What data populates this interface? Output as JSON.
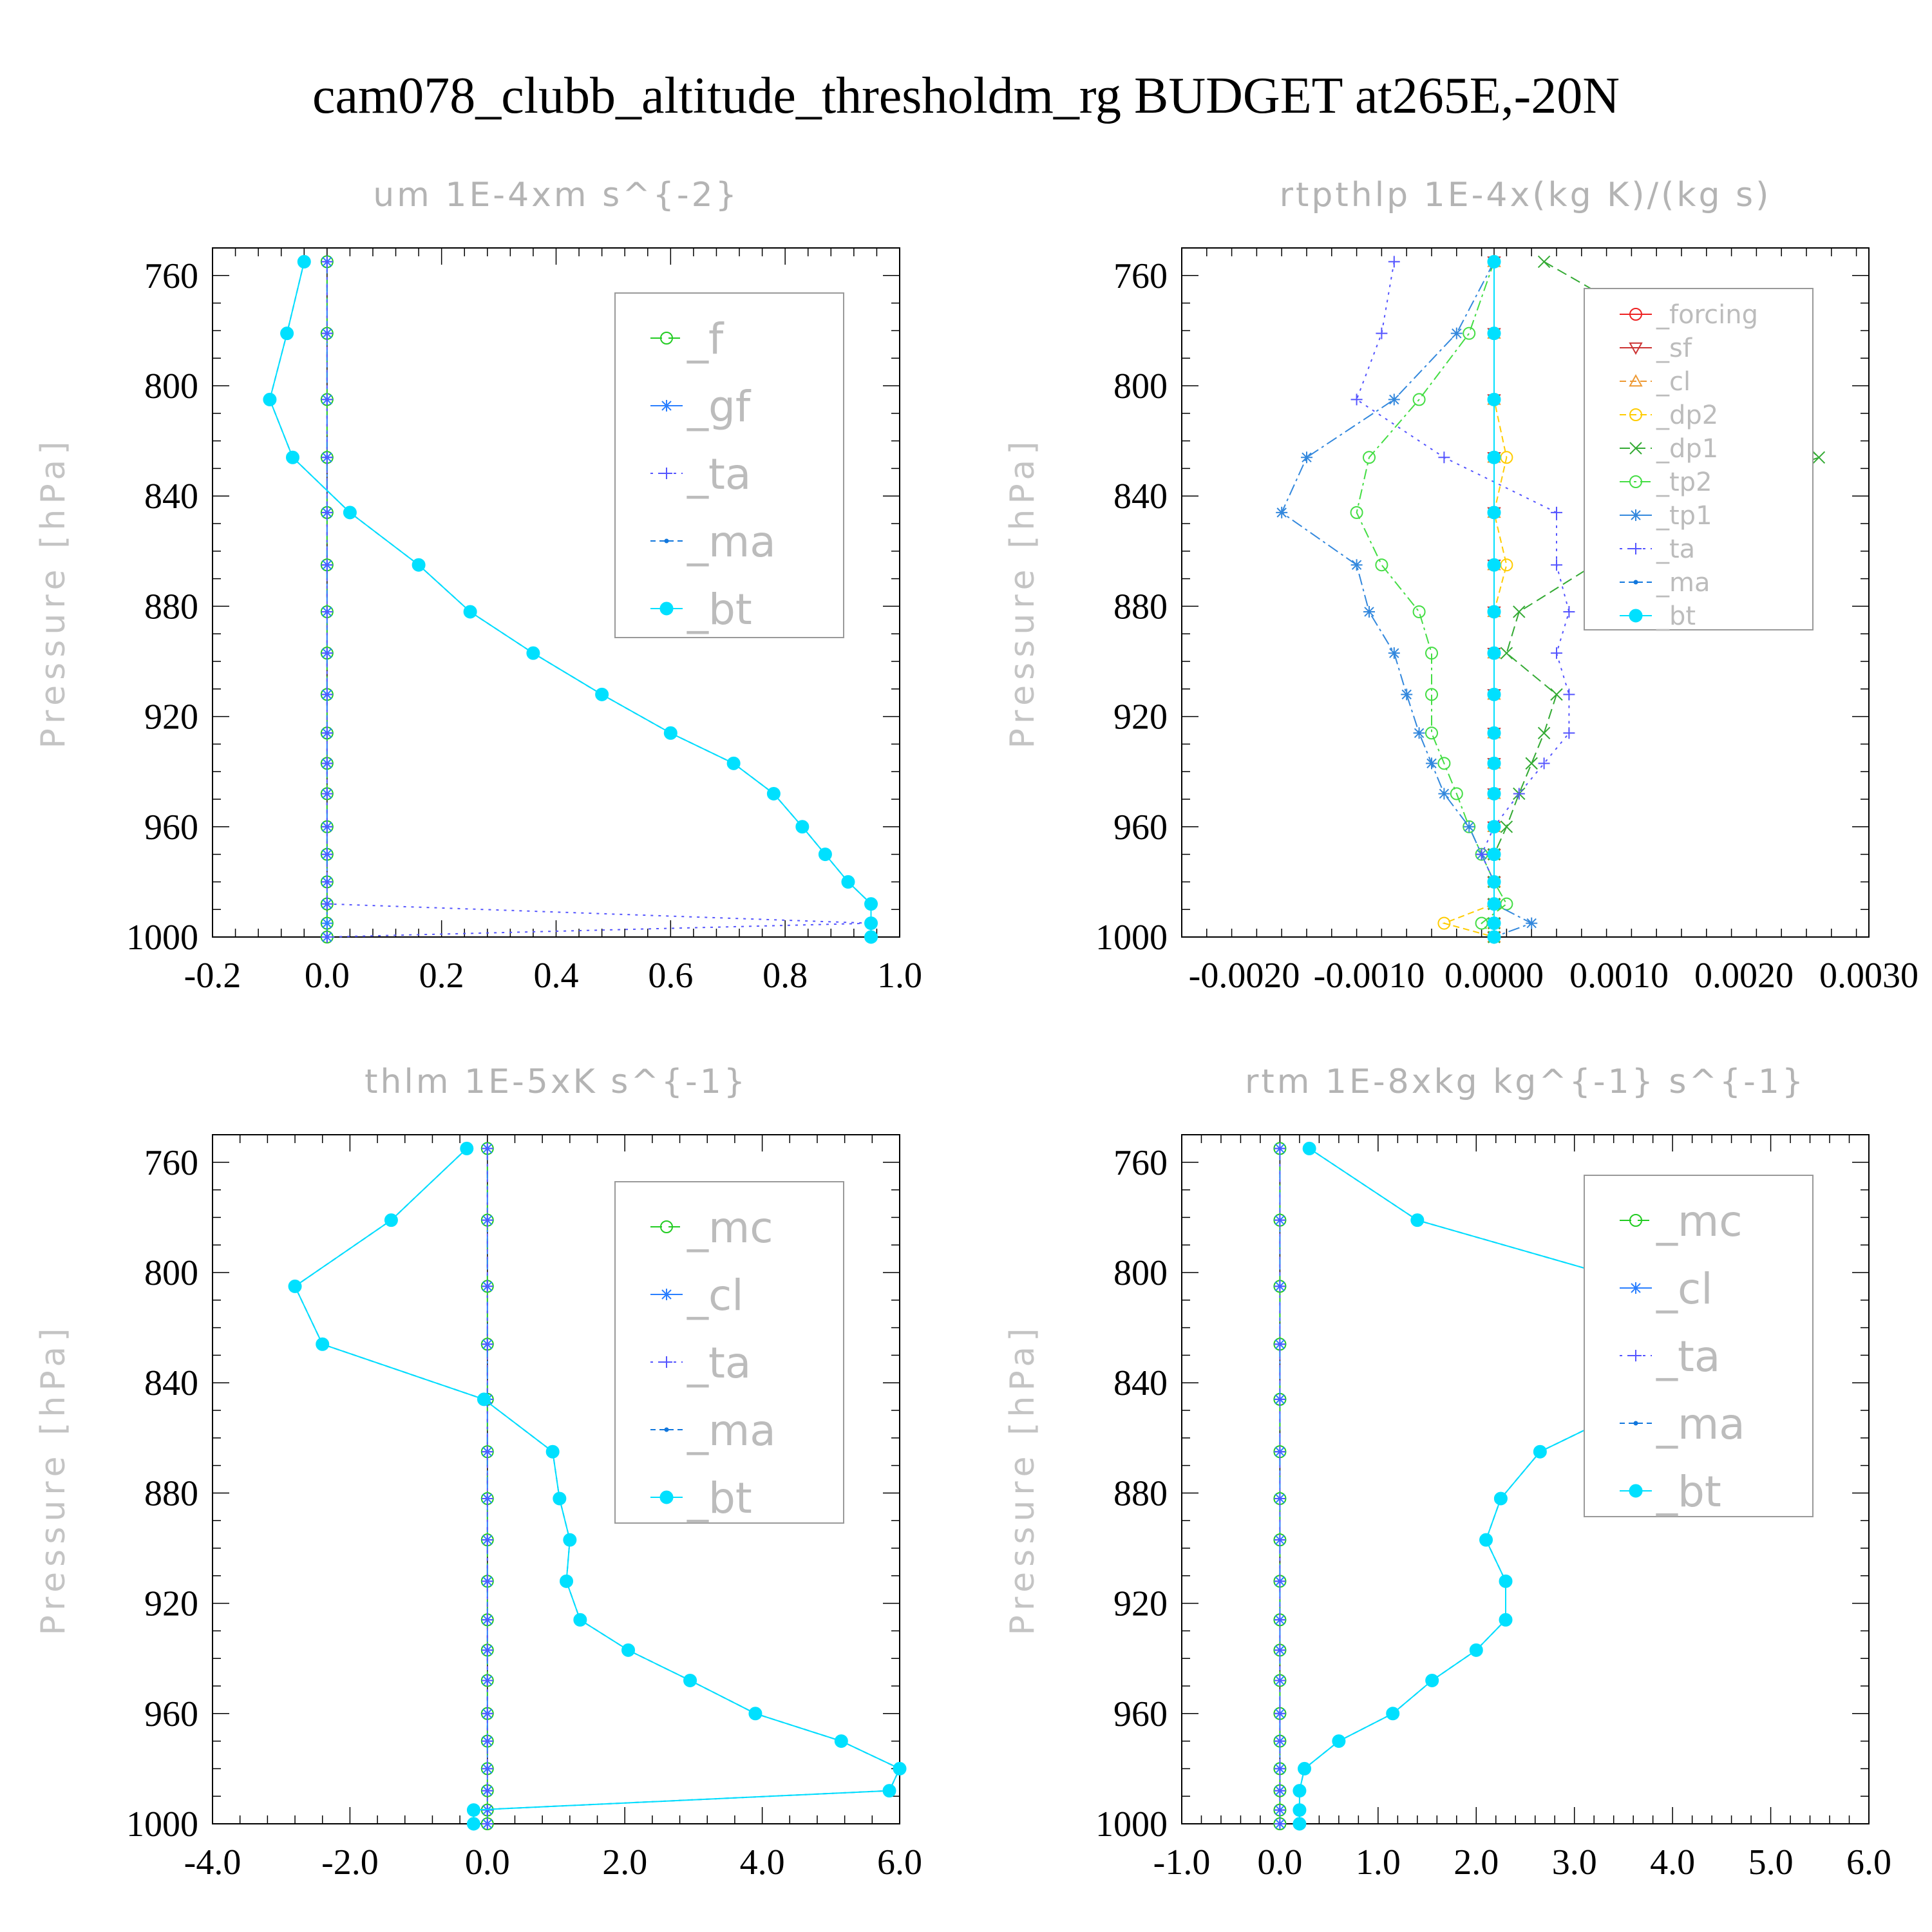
{
  "title": "cam078_clubb_altitude_thresholdm_rg  BUDGET at265E,-20N",
  "y_label": "Pressure [hPa]",
  "colors": {
    "_f": "#22cc22",
    "_mc": "#22cc22",
    "_gf": "#2a7fff",
    "_cl": "#2a7fff",
    "_ta": "#5555ff",
    "_ma": "#1177dd",
    "_bt": "#00e0ff",
    "_forcing": "#ee2222",
    "_sf": "#cc3333",
    "_cl_rtp": "#ee9933",
    "_dp2": "#ffcc00",
    "_dp1": "#33aa33",
    "_tp2": "#44dd44",
    "_tp1": "#3388dd",
    "zero_line": "#000000",
    "axis": "#000000"
  },
  "chart_data": [
    {
      "type": "line",
      "title": "um  1E-4xm s^{-2}",
      "ylabel": "Pressure [hPa]",
      "ylim": [
        1000,
        750
      ],
      "yticks": [
        760,
        800,
        840,
        880,
        920,
        960,
        1000
      ],
      "xlim": [
        -0.2,
        1.0
      ],
      "xticks": [
        "-0.2",
        "0.0",
        "0.2",
        "0.4",
        "0.6",
        "0.8",
        "1.0"
      ],
      "p": [
        755,
        781,
        805,
        826,
        846,
        865,
        882,
        897,
        912,
        926,
        937,
        948,
        960,
        970,
        980,
        988,
        995,
        1000
      ],
      "legend_style": "big",
      "series": [
        {
          "name": "_f",
          "key": "_f",
          "marker": "circle",
          "dash": "18 10",
          "values": [
            0,
            0,
            0,
            0,
            0,
            0,
            0,
            0,
            0,
            0,
            0,
            0,
            0,
            0,
            0,
            0,
            0,
            0
          ]
        },
        {
          "name": "_gf",
          "key": "_gf",
          "marker": "star",
          "dash": "18 6 4 6",
          "values": [
            0,
            0,
            0,
            0,
            0,
            0,
            0,
            0,
            0,
            0,
            0,
            0,
            0,
            0,
            0,
            0,
            0,
            0
          ]
        },
        {
          "name": "_ta",
          "key": "_ta",
          "marker": "plus",
          "dash": "4 8",
          "values": [
            0,
            0,
            0,
            0,
            0,
            0,
            0,
            0,
            0,
            0,
            0,
            0,
            0,
            0,
            0,
            0,
            0.95,
            0
          ]
        },
        {
          "name": "_ma",
          "key": "_ma",
          "marker": "dot",
          "dash": "8 6",
          "values": [
            -0.04,
            -0.07,
            -0.1,
            -0.06,
            0.04,
            0.16,
            0.25,
            0.36,
            0.48,
            0.6,
            0.71,
            0.78,
            0.83,
            0.87,
            0.91,
            0.95,
            0.95,
            0.95
          ]
        },
        {
          "name": "_bt",
          "key": "_bt",
          "marker": "filled",
          "dash": "",
          "values": [
            -0.04,
            -0.07,
            -0.1,
            -0.06,
            0.04,
            0.16,
            0.25,
            0.36,
            0.48,
            0.6,
            0.71,
            0.78,
            0.83,
            0.87,
            0.91,
            0.95,
            0.95,
            0.95
          ]
        }
      ]
    },
    {
      "type": "line",
      "title": "rtpthlp  1E-4x(kg K)/(kg s)",
      "ylabel": "Pressure [hPa]",
      "ylim": [
        1000,
        750
      ],
      "yticks": [
        760,
        800,
        840,
        880,
        920,
        960,
        1000
      ],
      "xlim": [
        -0.0025,
        0.003
      ],
      "xticks": [
        "-0.0020",
        "-0.0010",
        "0.0000",
        "0.0010",
        "0.0020",
        "0.0030"
      ],
      "p": [
        755,
        781,
        805,
        826,
        846,
        865,
        882,
        897,
        912,
        926,
        937,
        948,
        960,
        970,
        980,
        988,
        995,
        1000
      ],
      "legend_style": "small",
      "series": [
        {
          "name": "_forcing",
          "key": "_forcing",
          "marker": "circle",
          "dash": "",
          "values": [
            0,
            0,
            0,
            0,
            0,
            0,
            0,
            0,
            0,
            0,
            0,
            0,
            0,
            0,
            0,
            0,
            0,
            0
          ]
        },
        {
          "name": "_sf",
          "key": "_sf",
          "marker": "tri-down",
          "dash": "",
          "values": [
            0,
            0,
            0,
            0,
            0,
            0,
            0,
            0,
            0,
            0,
            0,
            0,
            0,
            0,
            0,
            0,
            0,
            0
          ]
        },
        {
          "name": "_cl",
          "key": "_cl_rtp",
          "marker": "tri-up",
          "dash": "10 6",
          "values": [
            0,
            0,
            0,
            0,
            0,
            0,
            0,
            0,
            0,
            0,
            0,
            0,
            0,
            0,
            0,
            0,
            0,
            0
          ]
        },
        {
          "name": "_dp2",
          "key": "_dp2",
          "marker": "circle",
          "dash": "10 6",
          "values": [
            0,
            0,
            0,
            0.0001,
            0,
            0.0001,
            0,
            0,
            0,
            0,
            0,
            0,
            0,
            0,
            0,
            0,
            -0.0004,
            0
          ]
        },
        {
          "name": "_dp1",
          "key": "_dp1",
          "marker": "x",
          "dash": "16 8",
          "values": [
            0.0004,
            0.0014,
            0.0021,
            0.0026,
            0.0013,
            0.0008,
            0.0002,
            0.0001,
            0.0005,
            0.0004,
            0.0003,
            0.0002,
            0.0001,
            0,
            0,
            0,
            0,
            0
          ]
        },
        {
          "name": "_tp2",
          "key": "_tp2",
          "marker": "circle",
          "dash": "16 6 4 6",
          "values": [
            0,
            -0.0002,
            -0.0006,
            -0.001,
            -0.0011,
            -0.0009,
            -0.0006,
            -0.0005,
            -0.0005,
            -0.0005,
            -0.0004,
            -0.0003,
            -0.0002,
            -0.0001,
            0,
            0.0001,
            -0.0001,
            0
          ]
        },
        {
          "name": "_tp1",
          "key": "_tp1",
          "marker": "star",
          "dash": "18 6 4 6",
          "values": [
            0,
            -0.0003,
            -0.0008,
            -0.0015,
            -0.0017,
            -0.0011,
            -0.001,
            -0.0008,
            -0.0007,
            -0.0006,
            -0.0005,
            -0.0004,
            -0.0002,
            -0.0001,
            0,
            0,
            0.0003,
            0
          ]
        },
        {
          "name": "_ta",
          "key": "_ta",
          "marker": "plus",
          "dash": "4 8",
          "values": [
            -0.0008,
            -0.0009,
            -0.0011,
            -0.0004,
            0.0005,
            0.0005,
            0.0006,
            0.0005,
            0.0006,
            0.0006,
            0.0004,
            0.0002,
            0,
            -0.0001,
            0,
            0,
            0,
            0
          ]
        },
        {
          "name": "_ma",
          "key": "_ma",
          "marker": "dot",
          "dash": "8 6",
          "values": [
            0,
            0,
            0,
            0,
            0,
            0,
            0,
            0,
            0,
            0,
            0,
            0,
            0,
            0,
            0,
            0,
            0,
            0
          ]
        },
        {
          "name": "_bt",
          "key": "_bt",
          "marker": "filled",
          "dash": "",
          "values": [
            0,
            0,
            0,
            0,
            0,
            0,
            0,
            0,
            0,
            0,
            0,
            0,
            0,
            0,
            0,
            0,
            0,
            0
          ]
        }
      ]
    },
    {
      "type": "line",
      "title": "thlm  1E-5xK s^{-1}",
      "ylabel": "Pressure [hPa]",
      "ylim": [
        1000,
        750
      ],
      "yticks": [
        760,
        800,
        840,
        880,
        920,
        960,
        1000
      ],
      "xlim": [
        -4.0,
        6.0
      ],
      "xticks": [
        "-4.0",
        "-2.0",
        "0.0",
        "2.0",
        "4.0",
        "6.0"
      ],
      "p": [
        755,
        781,
        805,
        826,
        846,
        865,
        882,
        897,
        912,
        926,
        937,
        948,
        960,
        970,
        980,
        988,
        995,
        1000
      ],
      "legend_style": "big",
      "series": [
        {
          "name": "_mc",
          "key": "_mc",
          "marker": "circle",
          "dash": "18 10",
          "values": [
            0,
            0,
            0,
            0,
            0,
            0,
            0,
            0,
            0,
            0,
            0,
            0,
            0,
            0,
            0,
            0,
            0,
            0
          ]
        },
        {
          "name": "_cl",
          "key": "_cl",
          "marker": "star",
          "dash": "18 6 4 6",
          "values": [
            0,
            0,
            0,
            0,
            0,
            0,
            0,
            0,
            0,
            0,
            0,
            0,
            0,
            0,
            0,
            0,
            0,
            0
          ]
        },
        {
          "name": "_ta",
          "key": "_ta",
          "marker": "plus",
          "dash": "4 8",
          "values": [
            0,
            0,
            0,
            0,
            0,
            0,
            0,
            0,
            0,
            0,
            0,
            0,
            0,
            0,
            0,
            0,
            0,
            0
          ]
        },
        {
          "name": "_ma",
          "key": "_ma",
          "marker": "dot",
          "dash": "8 6",
          "values": [
            -0.3,
            -1.4,
            -2.8,
            -2.4,
            -0.05,
            0.95,
            1.05,
            1.2,
            1.15,
            1.35,
            2.05,
            2.95,
            3.9,
            5.15,
            6.0,
            5.85,
            -0.2,
            -0.2
          ]
        },
        {
          "name": "_bt",
          "key": "_bt",
          "marker": "filled",
          "dash": "",
          "values": [
            -0.3,
            -1.4,
            -2.8,
            -2.4,
            -0.05,
            0.95,
            1.05,
            1.2,
            1.15,
            1.35,
            2.05,
            2.95,
            3.9,
            5.15,
            6.0,
            5.85,
            -0.2,
            -0.2
          ]
        }
      ]
    },
    {
      "type": "line",
      "title": "rtm  1E-8xkg kg^{-1} s^{-1}",
      "ylabel": "Pressure [hPa]",
      "ylim": [
        1000,
        750
      ],
      "yticks": [
        760,
        800,
        840,
        880,
        920,
        960,
        1000
      ],
      "xlim": [
        -1.0,
        6.0
      ],
      "xticks": [
        "-1.0",
        "0.0",
        "1.0",
        "2.0",
        "3.0",
        "4.0",
        "5.0",
        "6.0"
      ],
      "p": [
        755,
        781,
        805,
        826,
        846,
        865,
        882,
        897,
        912,
        926,
        937,
        948,
        960,
        970,
        980,
        988,
        995,
        1000
      ],
      "legend_style": "big",
      "series": [
        {
          "name": "_mc",
          "key": "_mc",
          "marker": "circle",
          "dash": "18 10",
          "values": [
            0,
            0,
            0,
            0,
            0,
            0,
            0,
            0,
            0,
            0,
            0,
            0,
            0,
            0,
            0,
            0,
            0,
            0
          ]
        },
        {
          "name": "_cl",
          "key": "_cl",
          "marker": "star",
          "dash": "18 6 4 6",
          "values": [
            0,
            0,
            0,
            0,
            0,
            0,
            0,
            0,
            0,
            0,
            0,
            0,
            0,
            0,
            0,
            0,
            0,
            0
          ]
        },
        {
          "name": "_ta",
          "key": "_ta",
          "marker": "plus",
          "dash": "4 8",
          "values": [
            0,
            0,
            0,
            0,
            0,
            0,
            0,
            0,
            0,
            0,
            0,
            0,
            0,
            0,
            0,
            0,
            0,
            0
          ]
        },
        {
          "name": "_ma",
          "key": "_ma",
          "marker": "dot",
          "dash": "8 6",
          "values": [
            0.3,
            1.4,
            3.75,
            5.2,
            3.75,
            2.65,
            2.25,
            2.1,
            2.3,
            2.3,
            2.0,
            1.55,
            1.15,
            0.6,
            0.25,
            0.2,
            0.2,
            0.2
          ]
        },
        {
          "name": "_bt",
          "key": "_bt",
          "marker": "filled",
          "dash": "",
          "values": [
            0.3,
            1.4,
            3.75,
            5.2,
            3.75,
            2.65,
            2.25,
            2.1,
            2.3,
            2.3,
            2.0,
            1.55,
            1.15,
            0.6,
            0.25,
            0.2,
            0.2,
            0.2
          ]
        }
      ]
    }
  ]
}
